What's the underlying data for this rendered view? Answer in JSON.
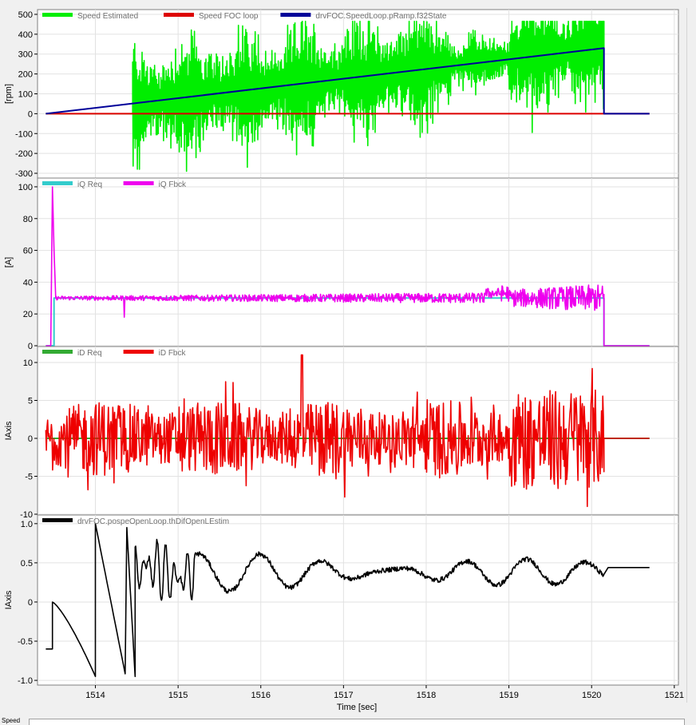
{
  "chart_data": [
    {
      "type": "line",
      "ylabel": "[rpm]",
      "ylim": [
        -320,
        520
      ],
      "yticks": [
        -300,
        -200,
        -100,
        0,
        100,
        200,
        300,
        400,
        500
      ],
      "grid": true,
      "legend": "top-left",
      "series": [
        {
          "name": "Speed Estimated",
          "color": "#00ee00",
          "kind": "speed_est"
        },
        {
          "name": "Speed FOC loop",
          "color": "#dd0000",
          "kind": "zero",
          "x": [
            1513.4,
            1520.7
          ],
          "y": [
            0,
            0
          ]
        },
        {
          "name": "drvFOC.SpeedLoop.pRamp.f32State",
          "color": "#000099",
          "kind": "poly",
          "x": [
            1513.4,
            1520.15,
            1520.15,
            1520.7
          ],
          "y": [
            0,
            330,
            0,
            0
          ]
        }
      ]
    },
    {
      "type": "line",
      "ylabel": "[A]",
      "ylim": [
        0,
        105
      ],
      "yticks": [
        0,
        20,
        40,
        60,
        80,
        100
      ],
      "grid": true,
      "legend": "top-left",
      "series": [
        {
          "name": "iQ Req",
          "color": "#33cccc",
          "kind": "poly",
          "x": [
            1513.4,
            1513.5,
            1513.5,
            1520.15,
            1520.15,
            1520.7
          ],
          "y": [
            0,
            0,
            30,
            30,
            0,
            0
          ]
        },
        {
          "name": "iQ Fbck",
          "color": "#ee00ee",
          "kind": "iq_fbck"
        }
      ]
    },
    {
      "type": "line",
      "ylabel": "IAxis",
      "ylim": [
        -10,
        12
      ],
      "yticks": [
        -10,
        -5,
        0,
        5,
        10
      ],
      "grid": true,
      "legend": "top-left",
      "series": [
        {
          "name": "iD Req",
          "color": "#33aa33",
          "kind": "zero",
          "x": [
            1513.4,
            1520.7
          ],
          "y": [
            0,
            0
          ]
        },
        {
          "name": "iD Fbck",
          "color": "#ee0000",
          "kind": "id_fbck"
        }
      ]
    },
    {
      "type": "line",
      "ylabel": "IAxis",
      "xlabel": "Time [sec]",
      "ylim": [
        -1.05,
        1.1
      ],
      "yticks": [
        -1.0,
        -0.5,
        0,
        0.5,
        1.0
      ],
      "ytick_labels": [
        "-1.0",
        "-0.5",
        "0",
        "0.5",
        "1.0"
      ],
      "grid": true,
      "legend": "top-left",
      "series": [
        {
          "name": "drvFOC.pospeOpenLoop.thDifOpenLEstim",
          "color": "#000000",
          "kind": "theta"
        }
      ]
    }
  ],
  "x_axis": {
    "xlim": [
      1513.3,
      1521.05
    ],
    "ticks": [
      1514,
      1515,
      1516,
      1517,
      1518,
      1519,
      1520,
      1521
    ],
    "label": "Time [sec]"
  },
  "bottom_label": "Speed"
}
